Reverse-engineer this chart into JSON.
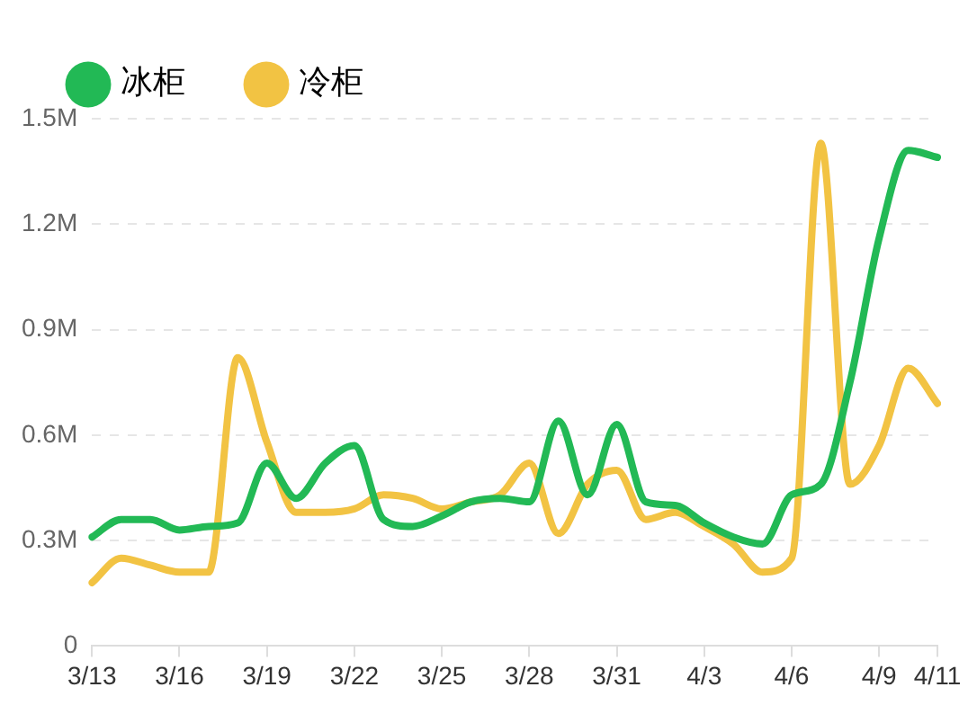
{
  "chart_data": {
    "type": "line",
    "categories": [
      "3/13",
      null,
      null,
      "3/16",
      null,
      null,
      "3/19",
      null,
      null,
      "3/22",
      null,
      null,
      "3/25",
      null,
      null,
      "3/28",
      null,
      null,
      "3/31",
      null,
      null,
      "4/3",
      null,
      null,
      "4/6",
      null,
      null,
      "4/9",
      null,
      "4/11"
    ],
    "series": [
      {
        "name": "冰柜",
        "color": "#22b955",
        "values": [
          310000,
          360000,
          360000,
          330000,
          340000,
          350000,
          520000,
          420000,
          520000,
          570000,
          360000,
          340000,
          370000,
          410000,
          420000,
          410000,
          640000,
          430000,
          630000,
          410000,
          400000,
          350000,
          310000,
          290000,
          430000,
          460000,
          750000,
          1160000,
          1410000,
          1390000
        ]
      },
      {
        "name": "冷柜",
        "color": "#f2c343",
        "values": [
          180000,
          250000,
          230000,
          210000,
          210000,
          820000,
          580000,
          380000,
          380000,
          390000,
          430000,
          420000,
          390000,
          410000,
          430000,
          520000,
          320000,
          460000,
          500000,
          360000,
          380000,
          340000,
          290000,
          210000,
          250000,
          1430000,
          460000,
          570000,
          790000,
          690000
        ]
      }
    ],
    "ylim": [
      0,
      1500000
    ],
    "yticks": [
      0,
      {
        "value": 300000,
        "label": "0.3M"
      },
      {
        "value": 600000,
        "label": "0.6M"
      },
      {
        "value": 900000,
        "label": "0.9M"
      },
      {
        "value": 1200000,
        "label": "1.2M"
      },
      {
        "value": 1500000,
        "label": "1.5M"
      }
    ],
    "grid": "y",
    "legend": "top left",
    "marker": "none",
    "line_style": "solid"
  }
}
